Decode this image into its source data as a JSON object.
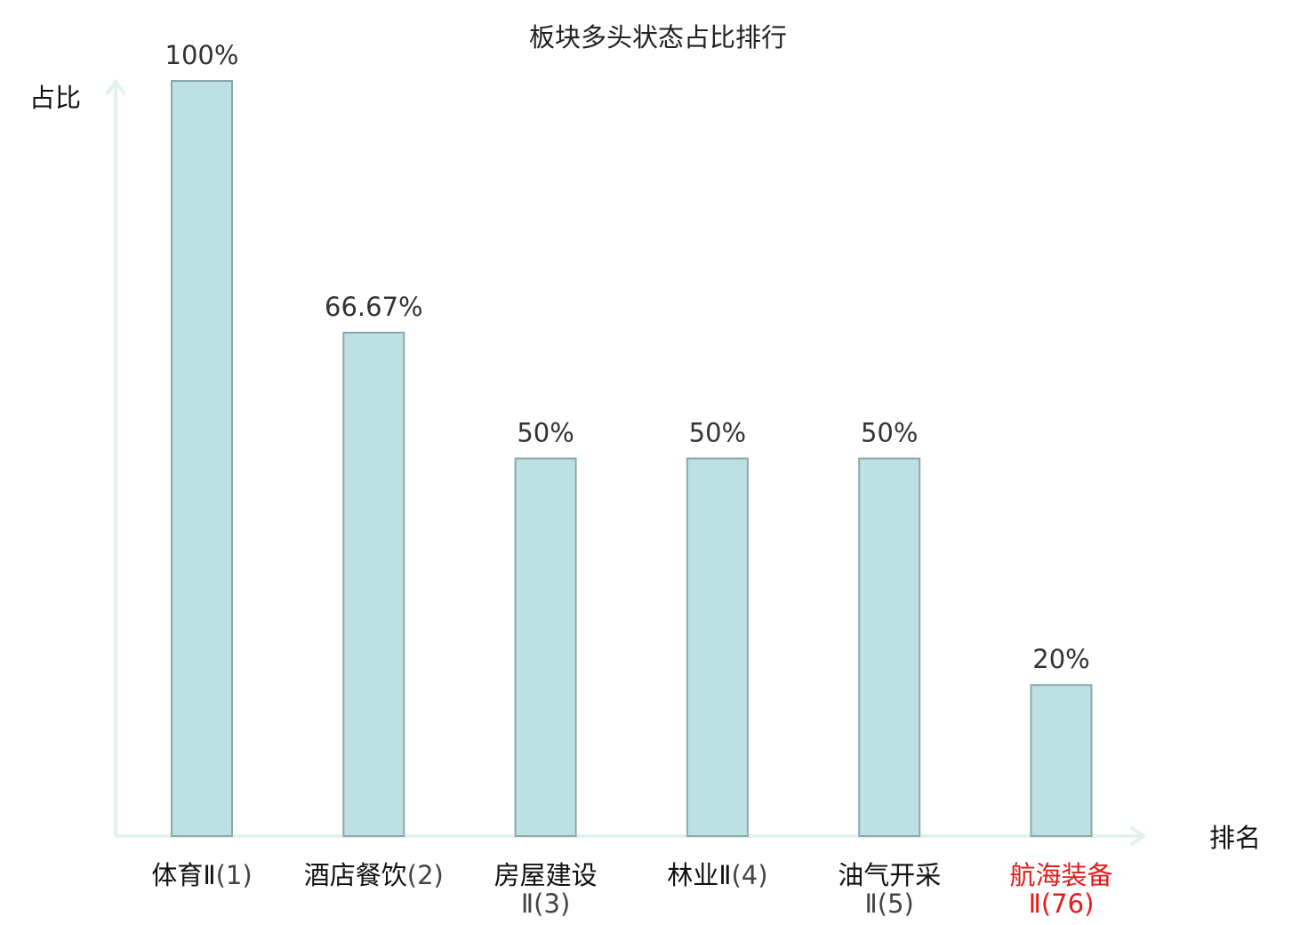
{
  "chart_data": {
    "type": "bar",
    "title": "板块多头状态占比排行",
    "ylabel": "占比",
    "xlabel": "排名",
    "ylim": [
      0,
      100
    ],
    "grid": false,
    "legend": "none",
    "categories": [
      {
        "name": "体育Ⅱ",
        "rank": "(1)",
        "highlight": false
      },
      {
        "name": "酒店餐饮",
        "rank": "(2)",
        "highlight": false
      },
      {
        "name": "房屋建设Ⅱ",
        "rank": "(3)",
        "highlight": false
      },
      {
        "name": "林业Ⅱ",
        "rank": "(4)",
        "highlight": false
      },
      {
        "name": "油气开采Ⅱ",
        "rank": "(5)",
        "highlight": false
      },
      {
        "name": "航海装备Ⅱ",
        "rank": "(76)",
        "highlight": true
      }
    ],
    "values": [
      100,
      66.67,
      50,
      50,
      50,
      20
    ],
    "value_labels": [
      "100%",
      "66.67%",
      "50%",
      "50%",
      "50%",
      "20%"
    ],
    "colors": {
      "bar_fill": "#bde0e3",
      "bar_stroke": "#8aa9ad",
      "axis": "#dff2ef",
      "highlight": "#e41a1c",
      "label": "#111111",
      "rank": "#444444"
    }
  }
}
